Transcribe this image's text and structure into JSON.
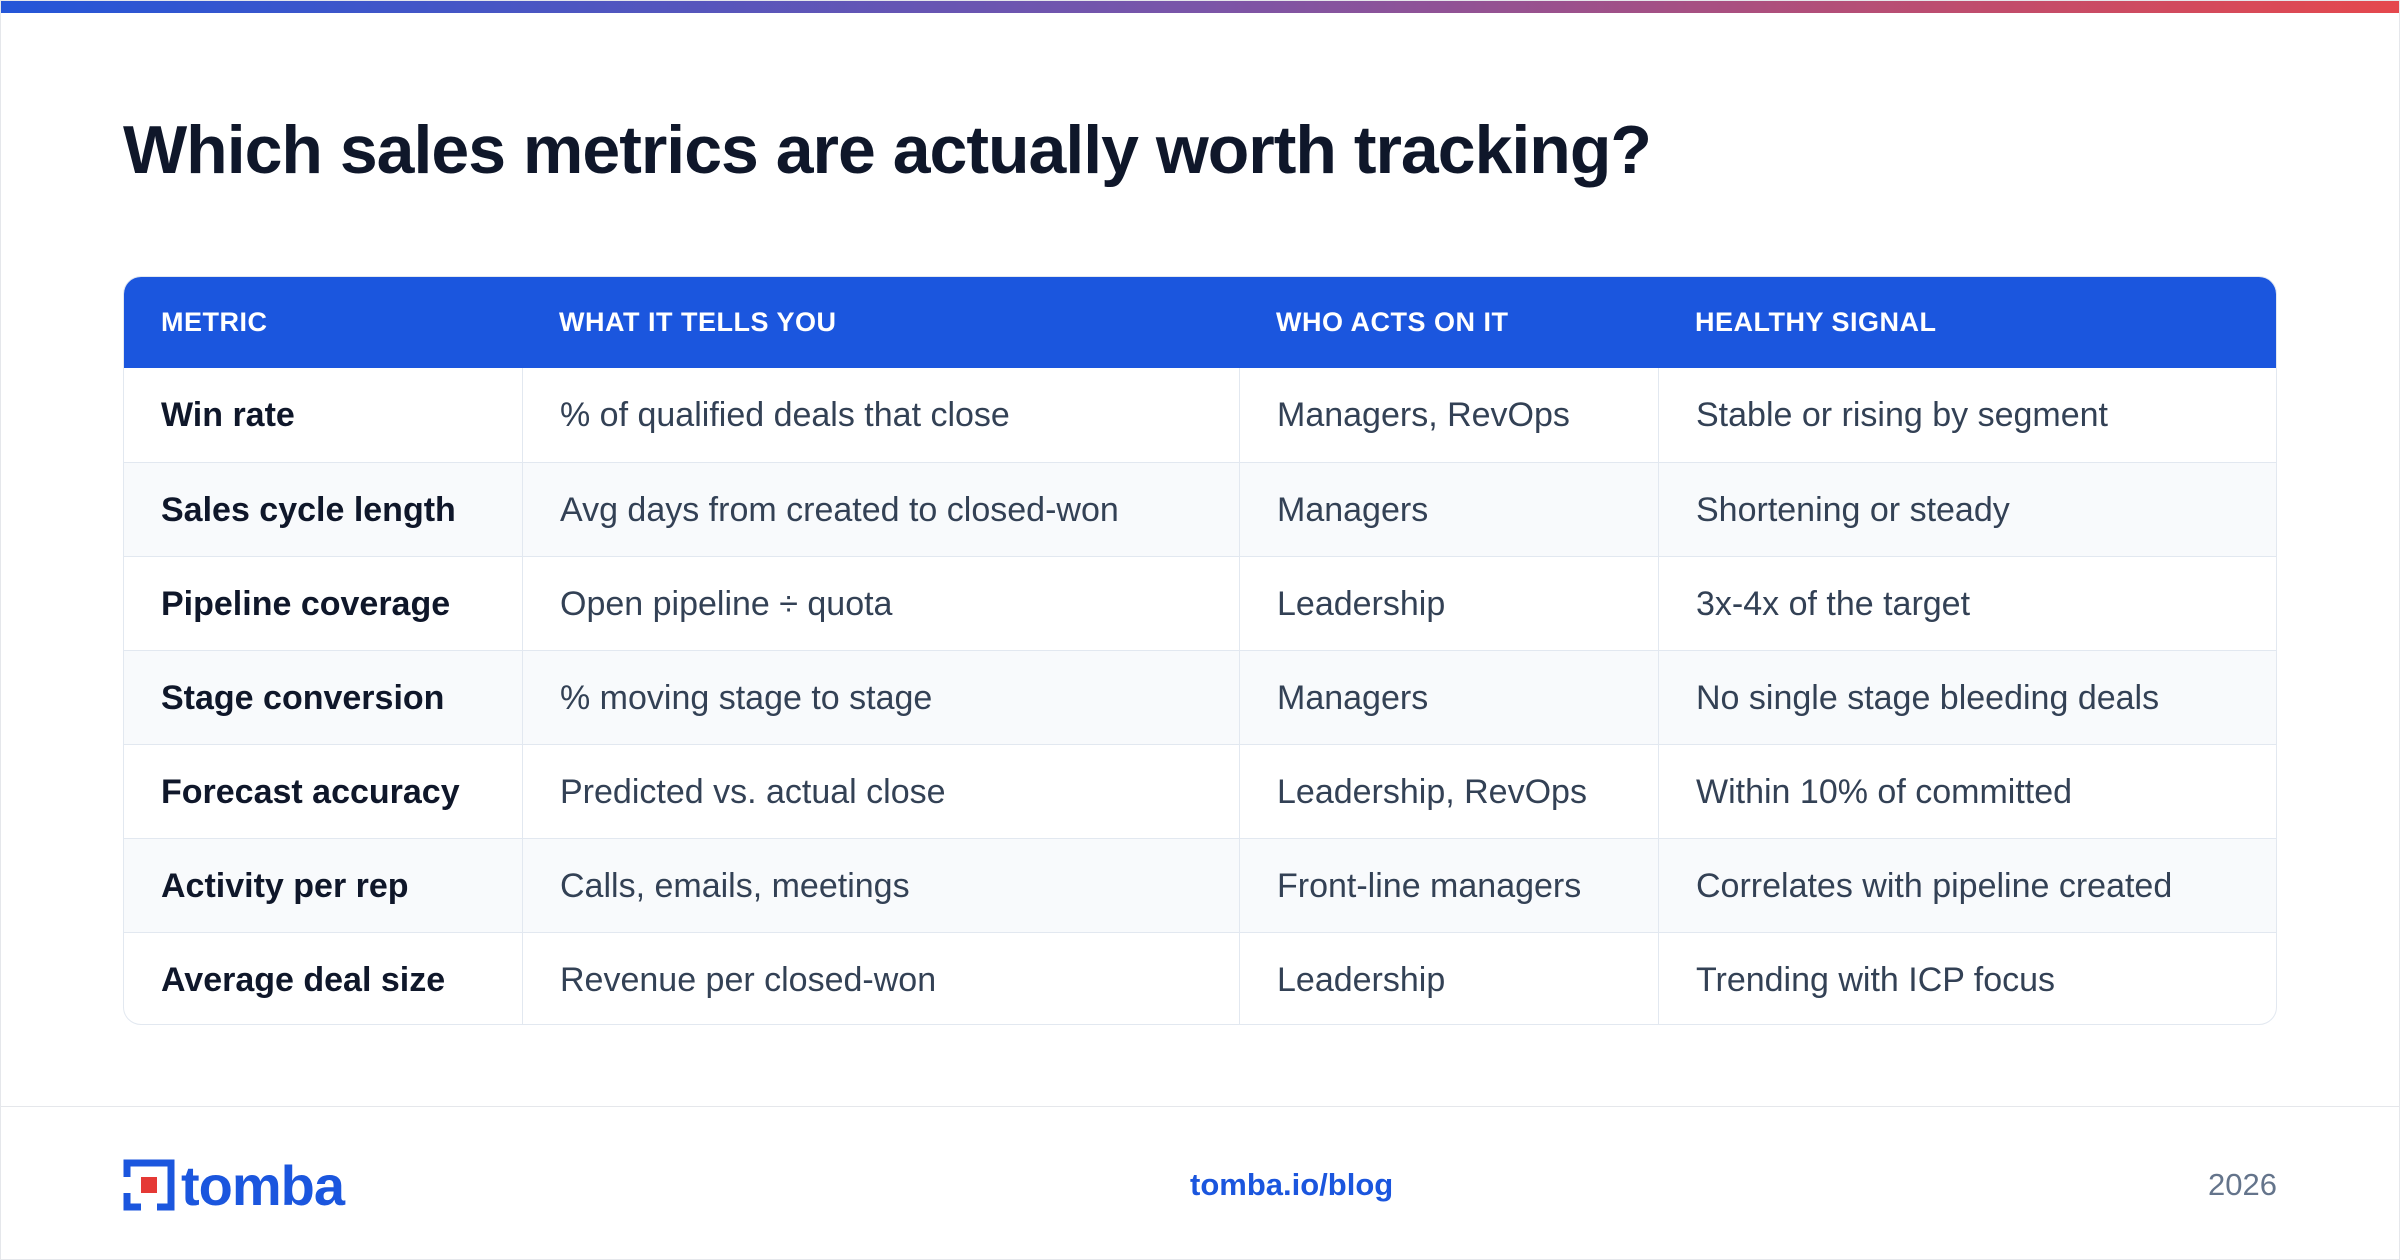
{
  "header": {
    "title": "Which sales metrics are actually worth tracking?"
  },
  "table": {
    "columns": [
      "METRIC",
      "WHAT IT TELLS YOU",
      "WHO ACTS ON IT",
      "HEALTHY SIGNAL"
    ],
    "rows": [
      [
        "Win rate",
        "% of qualified deals that close",
        "Managers, RevOps",
        "Stable or rising by segment"
      ],
      [
        "Sales cycle length",
        "Avg days from created to closed-won",
        "Managers",
        "Shortening or steady"
      ],
      [
        "Pipeline coverage",
        "Open pipeline ÷ quota",
        "Leadership",
        "3x-4x of the target"
      ],
      [
        "Stage conversion",
        "% moving stage to stage",
        "Managers",
        "No single stage bleeding deals"
      ],
      [
        "Forecast accuracy",
        "Predicted vs. actual close",
        "Leadership, RevOps",
        "Within 10% of committed"
      ],
      [
        "Activity per rep",
        "Calls, emails, meetings",
        "Front-line managers",
        "Correlates with pipeline created"
      ],
      [
        "Average deal size",
        "Revenue per closed-won",
        "Leadership",
        "Trending with ICP focus"
      ]
    ]
  },
  "footer": {
    "logo": "tomba",
    "url": "tomba.io/blog",
    "year": "2026"
  }
}
